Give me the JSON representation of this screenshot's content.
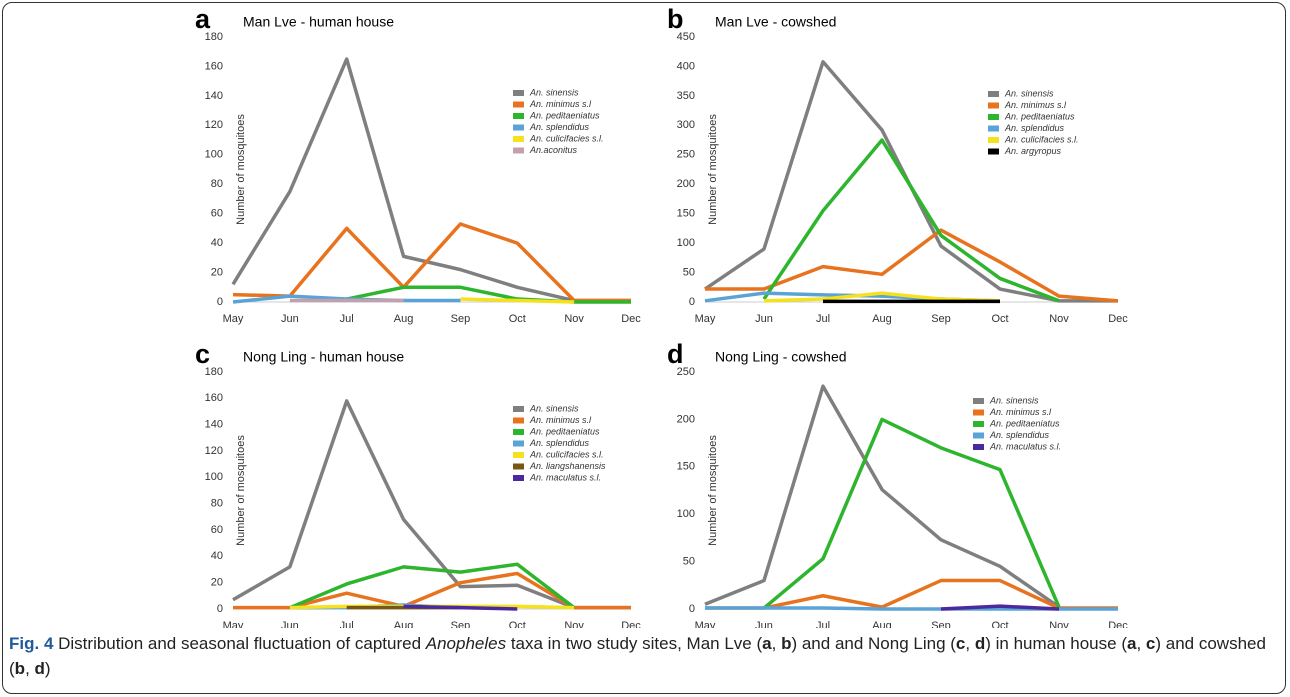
{
  "chart_data": [
    {
      "type": "line",
      "label": "a",
      "title": "Man Lve - human house",
      "y_label": "Number of mosquitoes",
      "categories": [
        "May",
        "Jun",
        "Jul",
        "Aug",
        "Sep",
        "Oct",
        "Nov",
        "Dec"
      ],
      "ylim": [
        0,
        180
      ],
      "yticks": [
        0,
        20,
        40,
        60,
        80,
        100,
        120,
        140,
        160,
        180
      ],
      "series": [
        {
          "name": "An. sinensis",
          "color": "#7f7f7f",
          "values": [
            12,
            75,
            165,
            31,
            22,
            10,
            1,
            1
          ]
        },
        {
          "name": "An. minimus s.l",
          "color": "#e8731e",
          "values": [
            5,
            4,
            50,
            10,
            53,
            40,
            1,
            1
          ]
        },
        {
          "name": "An. peditaeniatus",
          "color": "#2db52d",
          "values": [
            null,
            null,
            2,
            10,
            10,
            2,
            0,
            0
          ]
        },
        {
          "name": "An. splendidus",
          "color": "#5aa3d6",
          "values": [
            0,
            4,
            2,
            1,
            1,
            null,
            null,
            null
          ]
        },
        {
          "name": "An. culicifacies s.l.",
          "color": "#f5e11e",
          "values": [
            null,
            null,
            null,
            null,
            2,
            1,
            0,
            null
          ]
        },
        {
          "name": "An.aconitus",
          "color": "#c3a0ad",
          "values": [
            null,
            1,
            1,
            1,
            null,
            null,
            null,
            null
          ]
        }
      ]
    },
    {
      "type": "line",
      "label": "b",
      "title": "Man Lve - cowshed",
      "y_label": "Number of mosquitoes",
      "categories": [
        "May",
        "Jun",
        "Jul",
        "Aug",
        "Sep",
        "Oct",
        "Nov",
        "Dec"
      ],
      "ylim": [
        0,
        450
      ],
      "yticks": [
        0,
        50,
        100,
        150,
        200,
        250,
        300,
        350,
        400,
        450
      ],
      "series": [
        {
          "name": "An. sinensis",
          "color": "#7f7f7f",
          "values": [
            22,
            90,
            408,
            292,
            95,
            22,
            2,
            2
          ]
        },
        {
          "name": "An. minimus s.l",
          "color": "#e8731e",
          "values": [
            22,
            22,
            60,
            47,
            122,
            68,
            10,
            2
          ]
        },
        {
          "name": "An. peditaeniatus",
          "color": "#2db52d",
          "values": [
            null,
            5,
            155,
            275,
            113,
            40,
            2,
            null
          ]
        },
        {
          "name": "An. splendidus",
          "color": "#5aa3d6",
          "values": [
            2,
            15,
            12,
            10,
            5,
            2,
            null,
            null
          ]
        },
        {
          "name": "An. culicifacies s.l.",
          "color": "#f5e11e",
          "values": [
            null,
            2,
            5,
            15,
            5,
            2,
            null,
            null
          ]
        },
        {
          "name": "An. argyropus",
          "color": "#000000",
          "values": [
            null,
            null,
            1,
            1,
            1,
            1,
            null,
            null
          ]
        }
      ]
    },
    {
      "type": "line",
      "label": "c",
      "title": "Nong Ling - human house",
      "y_label": "Number of mosquitoes",
      "categories": [
        "May",
        "Jun",
        "Jul",
        "Aug",
        "Sep",
        "Oct",
        "Nov",
        "Dec"
      ],
      "ylim": [
        0,
        180
      ],
      "yticks": [
        0,
        20,
        40,
        60,
        80,
        100,
        120,
        140,
        160,
        180
      ],
      "series": [
        {
          "name": "An. sinensis",
          "color": "#7f7f7f",
          "values": [
            7,
            32,
            158,
            68,
            17,
            18,
            1,
            1
          ]
        },
        {
          "name": "An. minimus s.l",
          "color": "#e8731e",
          "values": [
            1,
            1,
            12,
            2,
            20,
            27,
            1,
            1
          ]
        },
        {
          "name": "An. peditaeniatus",
          "color": "#2db52d",
          "values": [
            null,
            1,
            19,
            32,
            28,
            34,
            1,
            null
          ]
        },
        {
          "name": "An. splendidus",
          "color": "#5aa3d6",
          "values": [
            null,
            1,
            1,
            3,
            1,
            null,
            null,
            null
          ]
        },
        {
          "name": "An. culicifacies s.l.",
          "color": "#f5e11e",
          "values": [
            null,
            1,
            2,
            2,
            2,
            2,
            1,
            null
          ]
        },
        {
          "name": "An. liangshanensis",
          "color": "#7a5614",
          "values": [
            null,
            null,
            1,
            1,
            1,
            null,
            null,
            null
          ]
        },
        {
          "name": "An. maculatus s.l.",
          "color": "#4b2a9e",
          "values": [
            null,
            null,
            null,
            2,
            1,
            0,
            null,
            null
          ]
        }
      ]
    },
    {
      "type": "line",
      "label": "d",
      "title": "Nong Ling - cowshed",
      "y_label": "Number of mosquitoes",
      "categories": [
        "May",
        "Jun",
        "Jul",
        "Aug",
        "Sep",
        "Oct",
        "Nov",
        "Dec"
      ],
      "ylim": [
        0,
        250
      ],
      "yticks": [
        0,
        50,
        100,
        150,
        200,
        250
      ],
      "series": [
        {
          "name": "An. sinensis",
          "color": "#7f7f7f",
          "values": [
            5,
            30,
            235,
            126,
            73,
            45,
            2,
            null
          ]
        },
        {
          "name": "An. minimus s.l",
          "color": "#e8731e",
          "values": [
            1,
            1,
            14,
            2,
            30,
            30,
            1,
            1
          ]
        },
        {
          "name": "An. peditaeniatus",
          "color": "#2db52d",
          "values": [
            null,
            1,
            53,
            200,
            170,
            147,
            2,
            null
          ]
        },
        {
          "name": "An. splendidus",
          "color": "#5aa3d6",
          "values": [
            1,
            1,
            1,
            0,
            0,
            0,
            0,
            0
          ]
        },
        {
          "name": "An. maculatus s.l.",
          "color": "#4b2a9e",
          "values": [
            null,
            null,
            null,
            null,
            0,
            3,
            0,
            null
          ]
        }
      ]
    }
  ],
  "caption": [
    "Fig. 4",
    " Distribution and seasonal fluctuation of captured ",
    "Anopheles",
    " taxa in two study sites, Man Lve (",
    "a",
    ", ",
    "b",
    ") and and Nong Ling (",
    "c",
    ", ",
    "d",
    ") in human house (",
    "a",
    ", ",
    "c",
    ") and cowshed (",
    "b",
    ", ",
    "d",
    ")"
  ]
}
